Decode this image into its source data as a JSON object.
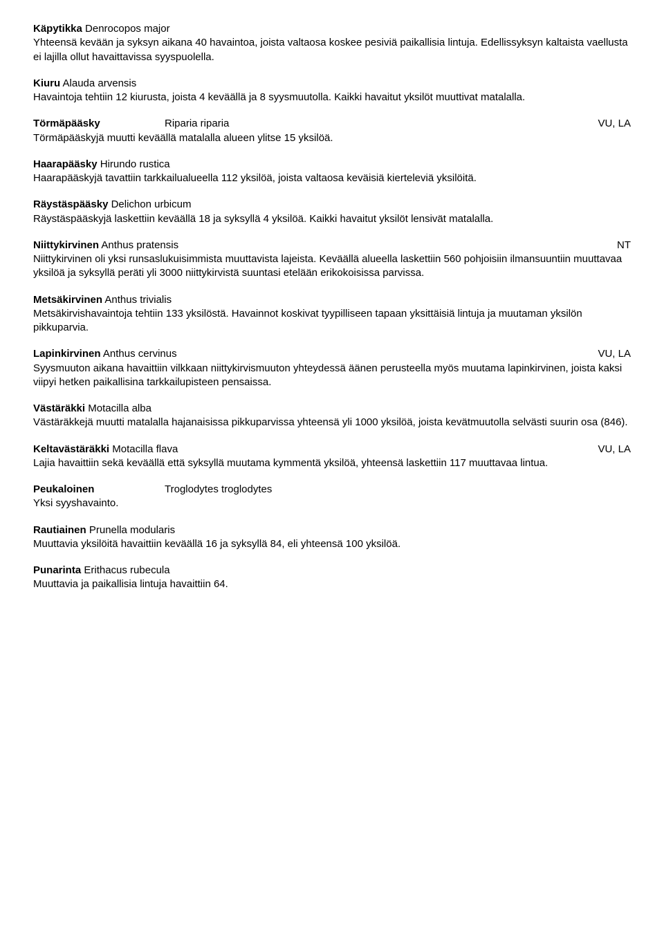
{
  "entries": [
    {
      "name_html": "<b>Käpytikka</b> Denrocopos major",
      "status": "",
      "desc": "Yhteensä kevään ja syksyn aikana 40 havaintoa, joista valtaosa koskee pesiviä paikallisia lintuja. Edellissyksyn kaltaista vaellusta ei lajilla ollut havaittavissa syyspuolella."
    },
    {
      "name_html": "<b>Kiuru</b> Alauda arvensis",
      "status": "",
      "desc": "Havaintoja tehtiin 12  kiurusta, joista 4 keväällä ja 8 syysmuutolla. Kaikki havaitut yksilöt muuttivat matalalla."
    },
    {
      "name_left": "Törmäpääsky",
      "name_right": "Riparia riparia",
      "status": "VU, LA",
      "desc": "Törmäpääskyjä muutti keväällä matalalla alueen ylitse 15 yksilöä."
    },
    {
      "name_html": "<b>Haarapääsky</b> Hirundo rustica",
      "status": "",
      "desc": "Haarapääskyjä tavattiin tarkkailualueella 112 yksilöä, joista valtaosa keväisiä kierteleviä yksilöitä."
    },
    {
      "name_html": "<b>Räystäspääsky</b> Delichon urbicum",
      "status": "",
      "desc": "Räystäspääskyjä laskettiin keväällä 18 ja syksyllä 4 yksilöä. Kaikki havaitut yksilöt lensivät matalalla."
    },
    {
      "name_html": "<b>Niittykirvinen</b> Anthus pratensis",
      "status": "NT",
      "desc": "Niittykirvinen oli yksi runsaslukuisimmista muuttavista lajeista. Keväällä alueella laskettiin 560 pohjoisiin ilmansuuntiin muuttavaa yksilöä ja syksyllä peräti yli 3000 niittykirvistä suuntasi etelään erikokoisissa parvissa."
    },
    {
      "name_html": "<b>Metsäkirvinen</b> Anthus trivialis",
      "status": "",
      "desc": "Metsäkirvishavaintoja tehtiin 133 yksilöstä. Havainnot koskivat tyypilliseen tapaan yksittäisiä lintuja ja muutaman yksilön pikkuparvia."
    },
    {
      "name_html": "<b>Lapinkirvinen</b> Anthus cervinus",
      "status": "VU, LA",
      "desc": "Syysmuuton aikana havaittiin vilkkaan niittykirvismuuton yhteydessä äänen perusteella myös muutama lapinkirvinen, joista kaksi viipyi hetken paikallisina tarkkailupisteen pensaissa."
    },
    {
      "name_html": "<b>Västäräkki</b>  Motacilla alba",
      "status": "",
      "desc": "Västäräkkejä muutti matalalla hajanaisissa pikkuparvissa yhteensä yli 1000 yksilöä, joista kevätmuutolla selvästi suurin osa (846)."
    },
    {
      "name_html": "<b>Keltavästäräkki</b> Motacilla flava",
      "status": "VU, LA",
      "desc": "Lajia havaittiin sekä keväällä että syksyllä muutama kymmentä yksilöä, yhteensä laskettiin 117 muuttavaa lintua."
    },
    {
      "name_left": "Peukaloinen",
      "name_right": "Troglodytes troglodytes",
      "status": "",
      "desc": "Yksi syyshavainto."
    },
    {
      "name_html": "<b>Rautiainen</b> Prunella modularis",
      "status": "",
      "desc": "Muuttavia yksilöitä havaittiin keväällä 16 ja syksyllä 84, eli yhteensä 100 yksilöä."
    },
    {
      "name_html": "<b>Punarinta</b> Erithacus rubecula",
      "status": "",
      "desc": "Muuttavia ja paikallisia lintuja havaittiin 64."
    }
  ]
}
